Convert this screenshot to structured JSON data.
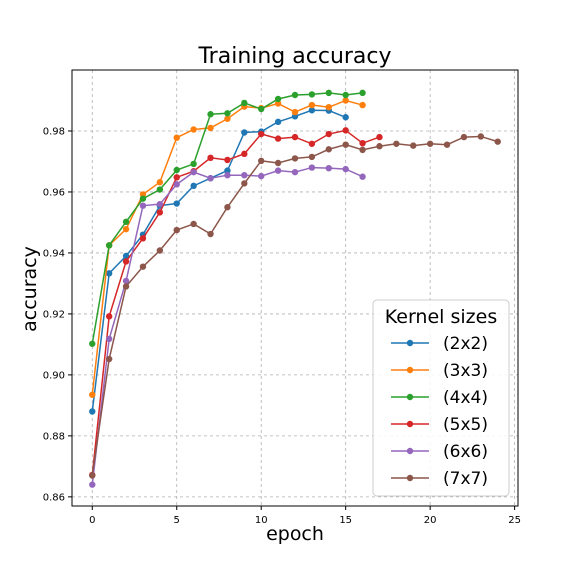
{
  "chart_data": {
    "type": "line",
    "title": "Training accuracy",
    "xlabel": "epoch",
    "ylabel": "accuracy",
    "xlim": [
      -1.2,
      25.2
    ],
    "ylim": [
      0.857,
      1.0
    ],
    "xticks": [
      0,
      5,
      10,
      15,
      20,
      25
    ],
    "yticks": [
      0.86,
      0.88,
      0.9,
      0.92,
      0.94,
      0.96,
      0.98
    ],
    "ytick_labels": [
      "0.86",
      "0.88",
      "0.90",
      "0.92",
      "0.94",
      "0.96",
      "0.98"
    ],
    "grid": true,
    "legend": {
      "title": "Kernel sizes",
      "placement": "lower-right"
    },
    "series": [
      {
        "name": "(2x2)",
        "color": "#1f77b4",
        "x": [
          0,
          1,
          2,
          3,
          4,
          5,
          6,
          7,
          8,
          9,
          10,
          11,
          12,
          13,
          14,
          15
        ],
        "values": [
          0.888,
          0.9333,
          0.939,
          0.946,
          0.9555,
          0.9562,
          0.962,
          0.9645,
          0.967,
          0.9795,
          0.9798,
          0.983,
          0.9848,
          0.9868,
          0.9867,
          0.9845
        ]
      },
      {
        "name": "(3x3)",
        "color": "#ff7f0e",
        "x": [
          0,
          1,
          2,
          3,
          4,
          5,
          6,
          7,
          8,
          9,
          10,
          11,
          12,
          13,
          14,
          15,
          16
        ],
        "values": [
          0.8935,
          0.9425,
          0.9478,
          0.9592,
          0.9632,
          0.9778,
          0.9805,
          0.981,
          0.984,
          0.988,
          0.9875,
          0.989,
          0.9862,
          0.9885,
          0.9878,
          0.99,
          0.9885
        ]
      },
      {
        "name": "(4x4)",
        "color": "#2ca02c",
        "x": [
          0,
          1,
          2,
          3,
          4,
          5,
          6,
          7,
          8,
          9,
          10,
          11,
          12,
          13,
          14,
          15,
          16
        ],
        "values": [
          0.9102,
          0.9425,
          0.9502,
          0.9578,
          0.9608,
          0.9672,
          0.9692,
          0.9855,
          0.9858,
          0.9892,
          0.9872,
          0.9905,
          0.9918,
          0.992,
          0.9925,
          0.9918,
          0.9925
        ]
      },
      {
        "name": "(5x5)",
        "color": "#d62728",
        "x": [
          0,
          1,
          2,
          3,
          4,
          5,
          6,
          7,
          8,
          9,
          10,
          11,
          12,
          13,
          14,
          15,
          16,
          17
        ],
        "values": [
          0.8672,
          0.9192,
          0.9372,
          0.9448,
          0.9533,
          0.9648,
          0.9668,
          0.9712,
          0.9705,
          0.9725,
          0.979,
          0.9775,
          0.978,
          0.9758,
          0.979,
          0.9802,
          0.976,
          0.978
        ]
      },
      {
        "name": "(6x6)",
        "color": "#9467bd",
        "x": [
          0,
          1,
          2,
          3,
          4,
          5,
          6,
          7,
          8,
          9,
          10,
          11,
          12,
          13,
          14,
          15,
          16
        ],
        "values": [
          0.864,
          0.9118,
          0.9308,
          0.9555,
          0.956,
          0.9625,
          0.9665,
          0.9645,
          0.9655,
          0.9655,
          0.9652,
          0.967,
          0.9665,
          0.968,
          0.9678,
          0.9675,
          0.965
        ]
      },
      {
        "name": "(7x7)",
        "color": "#8c564b",
        "x": [
          0,
          1,
          2,
          3,
          4,
          5,
          6,
          7,
          8,
          9,
          10,
          11,
          12,
          13,
          14,
          15,
          16,
          17,
          18,
          19,
          20,
          21,
          22,
          23,
          24
        ],
        "values": [
          0.867,
          0.9052,
          0.929,
          0.9355,
          0.9408,
          0.9475,
          0.9495,
          0.9462,
          0.955,
          0.9628,
          0.9702,
          0.9695,
          0.971,
          0.9715,
          0.974,
          0.9755,
          0.9738,
          0.975,
          0.9758,
          0.9752,
          0.9758,
          0.9755,
          0.978,
          0.9782,
          0.9765
        ]
      }
    ]
  }
}
